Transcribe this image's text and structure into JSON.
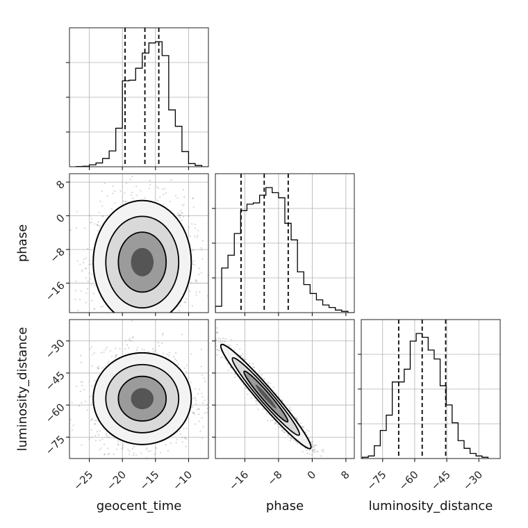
{
  "chart_data": {
    "type": "corner",
    "parameters": [
      "geocent_time",
      "phase",
      "luminosity_distance"
    ],
    "style": {
      "line_color": "#000000",
      "grid_color": "#b0b0b0",
      "background": "#ffffff",
      "grid": true
    },
    "axes": {
      "geocent_time": {
        "range": [
          -28,
          -7
        ],
        "ticks": [
          -25,
          -20,
          -15,
          -10
        ],
        "tick_labels": [
          "−25",
          "−20",
          "−15",
          "−10"
        ]
      },
      "phase": {
        "range": [
          -23,
          10
        ],
        "ticks": [
          -16,
          -8,
          0,
          8
        ],
        "tick_labels": [
          "−16",
          "−8",
          "0",
          "8"
        ]
      },
      "luminosity_distance": {
        "range": [
          -85,
          -20
        ],
        "ticks": [
          -75,
          -60,
          -45,
          -30
        ],
        "tick_labels": [
          "−75",
          "−60",
          "−45",
          "−30"
        ]
      }
    },
    "marginals": [
      {
        "parameter": "geocent_time",
        "quantiles": [
          -19.6,
          -16.6,
          -14.5
        ],
        "bin_width": 1.0,
        "bin_start": -27,
        "counts": [
          0.2,
          0.4,
          1.5,
          3.0,
          6.5,
          12.5,
          30.5,
          68.0,
          68.5,
          78.0,
          90.0,
          98.0,
          99.0,
          88.0,
          45.0,
          32.0,
          12.0,
          2.5,
          1.0,
          0,
          0
        ]
      },
      {
        "parameter": "phase",
        "quantiles": [
          -16.9,
          -11.4,
          -5.7
        ],
        "bin_width": 1.5,
        "bin_start": -23,
        "counts": [
          5,
          35,
          45,
          62,
          80,
          85,
          86,
          92,
          98,
          94,
          90,
          70,
          57,
          32,
          22,
          15,
          10,
          6,
          4,
          2,
          1,
          0
        ]
      },
      {
        "parameter": "luminosity_distance",
        "quantiles": [
          -67.5,
          -56.5,
          -45.5
        ],
        "bin_width": 2.8,
        "bin_start": -84.5,
        "counts": [
          1,
          2,
          10,
          22,
          34,
          60,
          60,
          70,
          92,
          98,
          95,
          85,
          78,
          57,
          42,
          28,
          14,
          8,
          4,
          2,
          1
        ]
      }
    ],
    "joint": [
      {
        "x": "geocent_time",
        "y": "phase",
        "center": [
          -17,
          -11
        ],
        "spread": [
          3.8,
          7.5
        ],
        "rho": 0.0
      },
      {
        "x": "geocent_time",
        "y": "luminosity_distance",
        "center": [
          -17,
          -57
        ],
        "spread": [
          3.8,
          11.0
        ],
        "rho": 0.0
      },
      {
        "x": "phase",
        "y": "luminosity_distance",
        "center": [
          -11,
          -56
        ],
        "spread": [
          5.5,
          12.5
        ],
        "rho": -0.97
      }
    ]
  }
}
